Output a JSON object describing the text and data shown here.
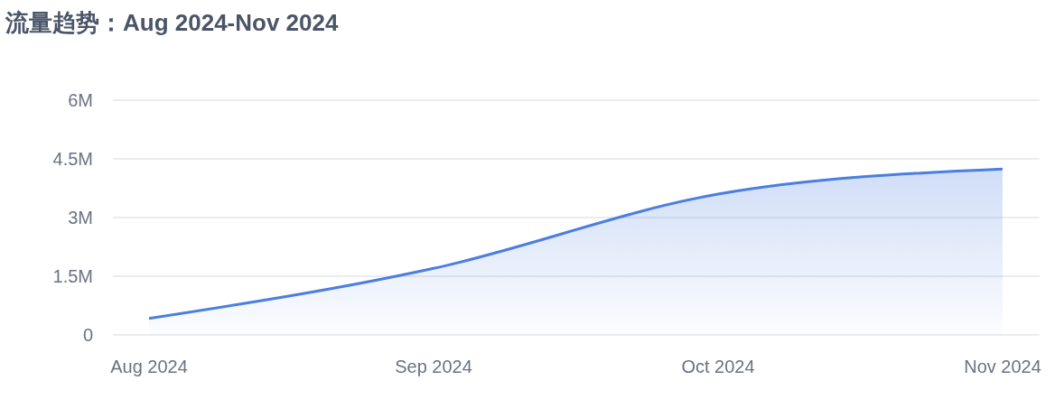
{
  "chart_data": {
    "type": "area",
    "title": "流量趋势：Aug 2024-Nov 2024",
    "categories": [
      "Aug 2024",
      "Sep 2024",
      "Oct 2024",
      "Nov 2024"
    ],
    "values": [
      0.42,
      1.7,
      3.6,
      4.24
    ],
    "color": "#4a7ee0",
    "ylim": [
      0,
      6
    ],
    "yticks": [
      0,
      {
        "value": 1.5,
        "label": "1.5M"
      },
      {
        "value": 3,
        "label": "3M"
      },
      {
        "value": 4.5,
        "label": "4.5M"
      },
      {
        "value": 6,
        "label": "6M"
      }
    ],
    "grid": "y"
  }
}
